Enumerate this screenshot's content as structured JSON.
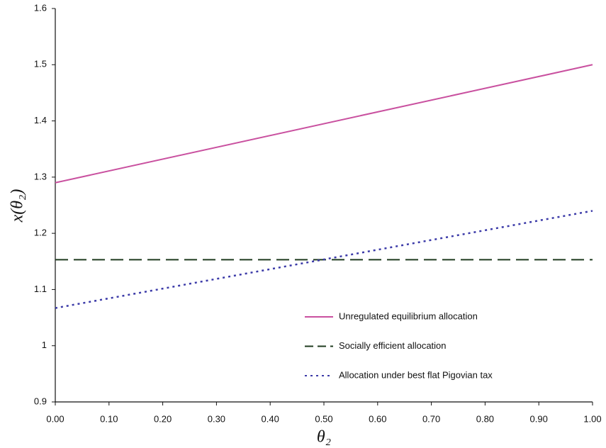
{
  "chart_data": {
    "type": "line",
    "x_label": "θ₂",
    "y_label": "x(θ₂)",
    "x": [
      0,
      1
    ],
    "series": [
      {
        "name": "Unregulated equilibrium allocation",
        "color": "#c9509f",
        "style": "solid",
        "values": [
          1.29,
          1.5
        ]
      },
      {
        "name": "Socially efficient allocation",
        "color": "#1f3b1f",
        "style": "dashed",
        "values": [
          1.153,
          1.153
        ]
      },
      {
        "name": "Allocation under best flat Pigovian tax",
        "color": "#3b3aa8",
        "style": "dotted",
        "values": [
          1.067,
          1.24
        ]
      }
    ],
    "xlim": [
      0,
      1
    ],
    "xticks": [
      {
        "value": 0,
        "label": "0.00"
      },
      {
        "value": 0.1,
        "label": "0.10"
      },
      {
        "value": 0.2,
        "label": "0.20"
      },
      {
        "value": 0.3,
        "label": "0.30"
      },
      {
        "value": 0.4,
        "label": "0.40"
      },
      {
        "value": 0.5,
        "label": "0.50"
      },
      {
        "value": 0.6,
        "label": "0.60"
      },
      {
        "value": 0.7,
        "label": "0.70"
      },
      {
        "value": 0.8,
        "label": "0.80"
      },
      {
        "value": 0.9,
        "label": "0.90"
      },
      {
        "value": 1,
        "label": "1.00"
      }
    ],
    "ylim": [
      0.9,
      1.6
    ],
    "yticks": [
      0.9,
      1,
      1.1,
      1.2,
      1.3,
      1.4,
      1.5,
      1.6
    ],
    "grid": false
  }
}
